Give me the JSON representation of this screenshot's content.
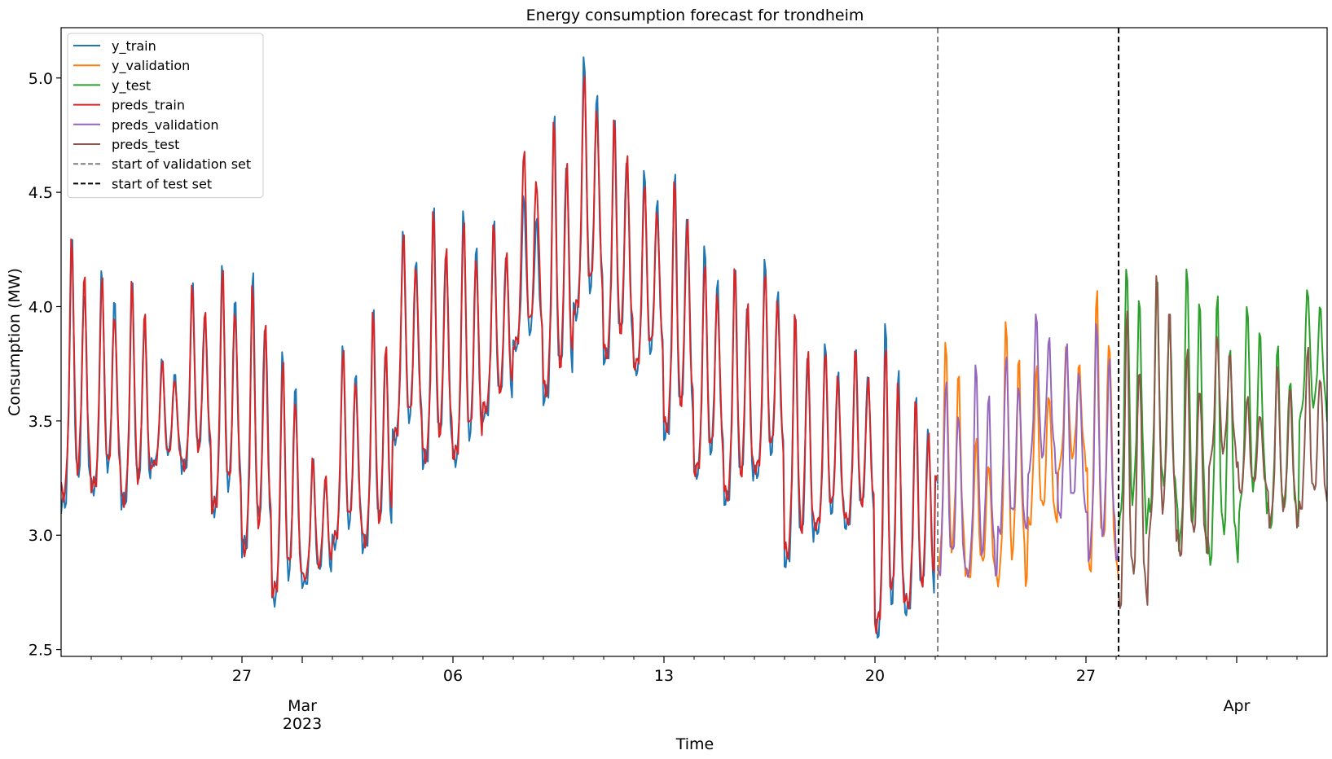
{
  "chart_data": {
    "type": "line",
    "title": "Energy consumption forecast for trondheim",
    "xlabel": "Time",
    "ylabel": "Consumption (MW)",
    "x_range": [
      "2023-02-21T00:00",
      "2023-04-04T00:00"
    ],
    "ylim": [
      2.47,
      5.22
    ],
    "grid": false,
    "legend_position": "upper-left",
    "y_ticks": [
      2.5,
      3.0,
      3.5,
      4.0,
      4.5,
      5.0
    ],
    "y_tick_labels": [
      "2.5",
      "3.0",
      "3.5",
      "4.0",
      "4.5",
      "5.0"
    ],
    "x_major_ticks": [
      {
        "date": "2023-02-27",
        "label": "27"
      },
      {
        "date": "2023-03-06",
        "label": "06"
      },
      {
        "date": "2023-03-13",
        "label": "13"
      },
      {
        "date": "2023-03-20",
        "label": "20"
      },
      {
        "date": "2023-03-27",
        "label": "27"
      }
    ],
    "x_month_labels": [
      {
        "date": "2023-03-01",
        "label": "Mar",
        "sublabel": "2023"
      },
      {
        "date": "2023-04-01",
        "label": "Apr",
        "sublabel": ""
      }
    ],
    "vlines": [
      {
        "date": "2023-03-22T02:00",
        "color": "#7f7f7f",
        "style": "dashed",
        "name": "start of validation set"
      },
      {
        "date": "2023-03-28T02:00",
        "color": "#000000",
        "style": "dashed",
        "name": "start of test set"
      }
    ],
    "series": [
      {
        "name": "y_train",
        "color": "#1f77b4",
        "start": "2023-02-21T00:00",
        "end": "2023-03-22T02:00",
        "daily_max": [
          4.3,
          4.18,
          4.11,
          3.78,
          4.11,
          4.2,
          4.16,
          3.82,
          3.34,
          3.84,
          4.0,
          4.34,
          4.45,
          4.43,
          4.39,
          4.49,
          4.86,
          5.1,
          4.84,
          4.6,
          4.61,
          4.27,
          4.19,
          4.21,
          3.98,
          3.84,
          3.84,
          3.93,
          3.64,
          3.79
        ],
        "daily_min": [
          3.14,
          3.21,
          3.15,
          3.32,
          3.3,
          3.12,
          2.95,
          2.73,
          2.79,
          2.97,
          2.96,
          3.43,
          3.33,
          3.34,
          3.53,
          3.83,
          3.61,
          3.98,
          3.78,
          3.73,
          3.45,
          3.28,
          3.16,
          3.28,
          2.89,
          3.03,
          3.05,
          2.59,
          2.68,
          3.24
        ]
      },
      {
        "name": "y_validation",
        "color": "#ff7f0e",
        "start": "2023-03-22T02:00",
        "end": "2023-03-28T02:00",
        "daily_max": [
          3.86,
          3.43,
          3.95,
          3.75,
          3.83,
          4.09
        ],
        "daily_min": [
          2.86,
          2.82,
          2.82,
          3.05,
          3.3,
          2.85
        ]
      },
      {
        "name": "y_test",
        "color": "#2ca02c",
        "start": "2023-03-28T02:00",
        "end": "2023-04-04T00:00",
        "daily_max": [
          4.21,
          4.11,
          4.21,
          4.05,
          4.03,
          3.83,
          4.09
        ],
        "daily_min": [
          3.05,
          3.13,
          2.97,
          2.9,
          3.13,
          3.05,
          3.52
        ]
      },
      {
        "name": "preds_train",
        "color": "#d62728",
        "start": "2023-02-21T00:00",
        "end": "2023-03-22T02:00",
        "daily_max": [
          4.31,
          4.14,
          4.12,
          3.77,
          4.1,
          4.18,
          4.1,
          3.78,
          3.34,
          3.83,
          3.98,
          4.34,
          4.42,
          4.4,
          4.36,
          4.71,
          4.81,
          5.05,
          4.82,
          4.56,
          4.55,
          4.22,
          4.17,
          4.18,
          3.97,
          3.83,
          3.81,
          3.88,
          3.59,
          3.73
        ],
        "daily_min": [
          3.19,
          3.22,
          3.16,
          3.31,
          3.31,
          3.13,
          2.95,
          2.76,
          2.82,
          2.99,
          2.98,
          3.44,
          3.35,
          3.36,
          3.56,
          3.84,
          3.64,
          4.0,
          3.8,
          3.75,
          3.48,
          3.29,
          3.18,
          3.3,
          2.93,
          3.05,
          3.07,
          2.62,
          2.71,
          3.26
        ]
      },
      {
        "name": "preds_validation",
        "color": "#9467bd",
        "start": "2023-03-22T02:00",
        "end": "2023-03-28T02:00",
        "daily_max": [
          3.69,
          3.75,
          3.8,
          3.97,
          3.86,
          3.93
        ],
        "daily_min": [
          2.83,
          2.85,
          3.01,
          3.29,
          3.08,
          2.92
        ]
      },
      {
        "name": "preds_test",
        "color": "#8c564b",
        "start": "2023-03-28T02:00",
        "end": "2023-04-04T00:00",
        "daily_max": [
          3.99,
          4.16,
          3.82,
          3.88,
          3.61,
          3.75,
          3.83
        ],
        "daily_min": [
          2.7,
          3.02,
          2.92,
          3.32,
          3.19,
          3.06,
          3.12
        ]
      }
    ],
    "legend": [
      {
        "label": "y_train",
        "color": "#1f77b4",
        "style": "solid"
      },
      {
        "label": "y_validation",
        "color": "#ff7f0e",
        "style": "solid"
      },
      {
        "label": "y_test",
        "color": "#2ca02c",
        "style": "solid"
      },
      {
        "label": "preds_train",
        "color": "#d62728",
        "style": "solid"
      },
      {
        "label": "preds_validation",
        "color": "#9467bd",
        "style": "solid"
      },
      {
        "label": "preds_test",
        "color": "#8c564b",
        "style": "solid"
      },
      {
        "label": "start of validation set",
        "color": "#7f7f7f",
        "style": "dashed"
      },
      {
        "label": "start of test set",
        "color": "#000000",
        "style": "dashed"
      }
    ]
  }
}
